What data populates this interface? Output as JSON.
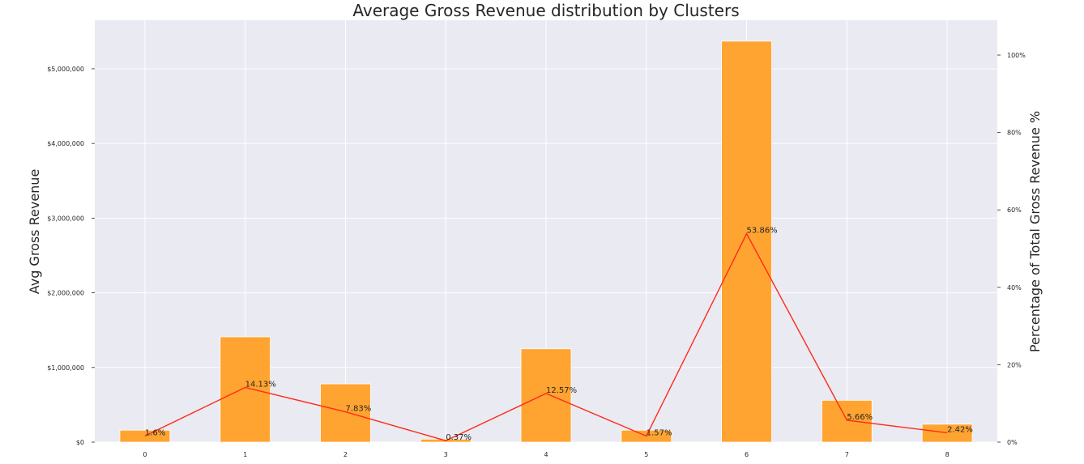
{
  "chart_data": {
    "type": "bar+line",
    "title": "Average Gross Revenue distribution by Clusters",
    "xlabel": "",
    "ylabel": "Avg Gross Revenue",
    "y2label": "Percentage of Total Gross Revenue %",
    "categories": [
      "0",
      "1",
      "2",
      "3",
      "4",
      "5",
      "6",
      "7",
      "8"
    ],
    "ylim": [
      0,
      5650000
    ],
    "y2lim": [
      0,
      109
    ],
    "yticks": [
      0,
      1000000,
      2000000,
      3000000,
      4000000,
      5000000
    ],
    "ytick_labels": [
      "$0",
      "$1,000,000",
      "$2,000,000",
      "$3,000,000",
      "$4,000,000",
      "$5,000,000"
    ],
    "y2ticks": [
      0,
      20,
      40,
      60,
      80,
      100
    ],
    "y2tick_labels": [
      "0%",
      "20%",
      "40%",
      "60%",
      "80%",
      "100%"
    ],
    "grid": true,
    "series": [
      {
        "kind": "bar",
        "axis": "left",
        "color": "#ffa431",
        "values": [
          160000,
          1410000,
          780000,
          40000,
          1250000,
          160000,
          5370000,
          560000,
          240000
        ]
      },
      {
        "kind": "line",
        "axis": "right",
        "color": "#ff2a1a",
        "values": [
          1.6,
          14.13,
          7.83,
          0.37,
          12.57,
          1.57,
          53.86,
          5.66,
          2.42
        ],
        "labels": [
          "1.6%",
          "14.13%",
          "7.83%",
          "0.37%",
          "12.57%",
          "1.57%",
          "53.86%",
          "5.66%",
          "2.42%"
        ]
      }
    ],
    "colors": {
      "plot_bg": "#eaeaf2",
      "grid": "#ffffff"
    }
  }
}
